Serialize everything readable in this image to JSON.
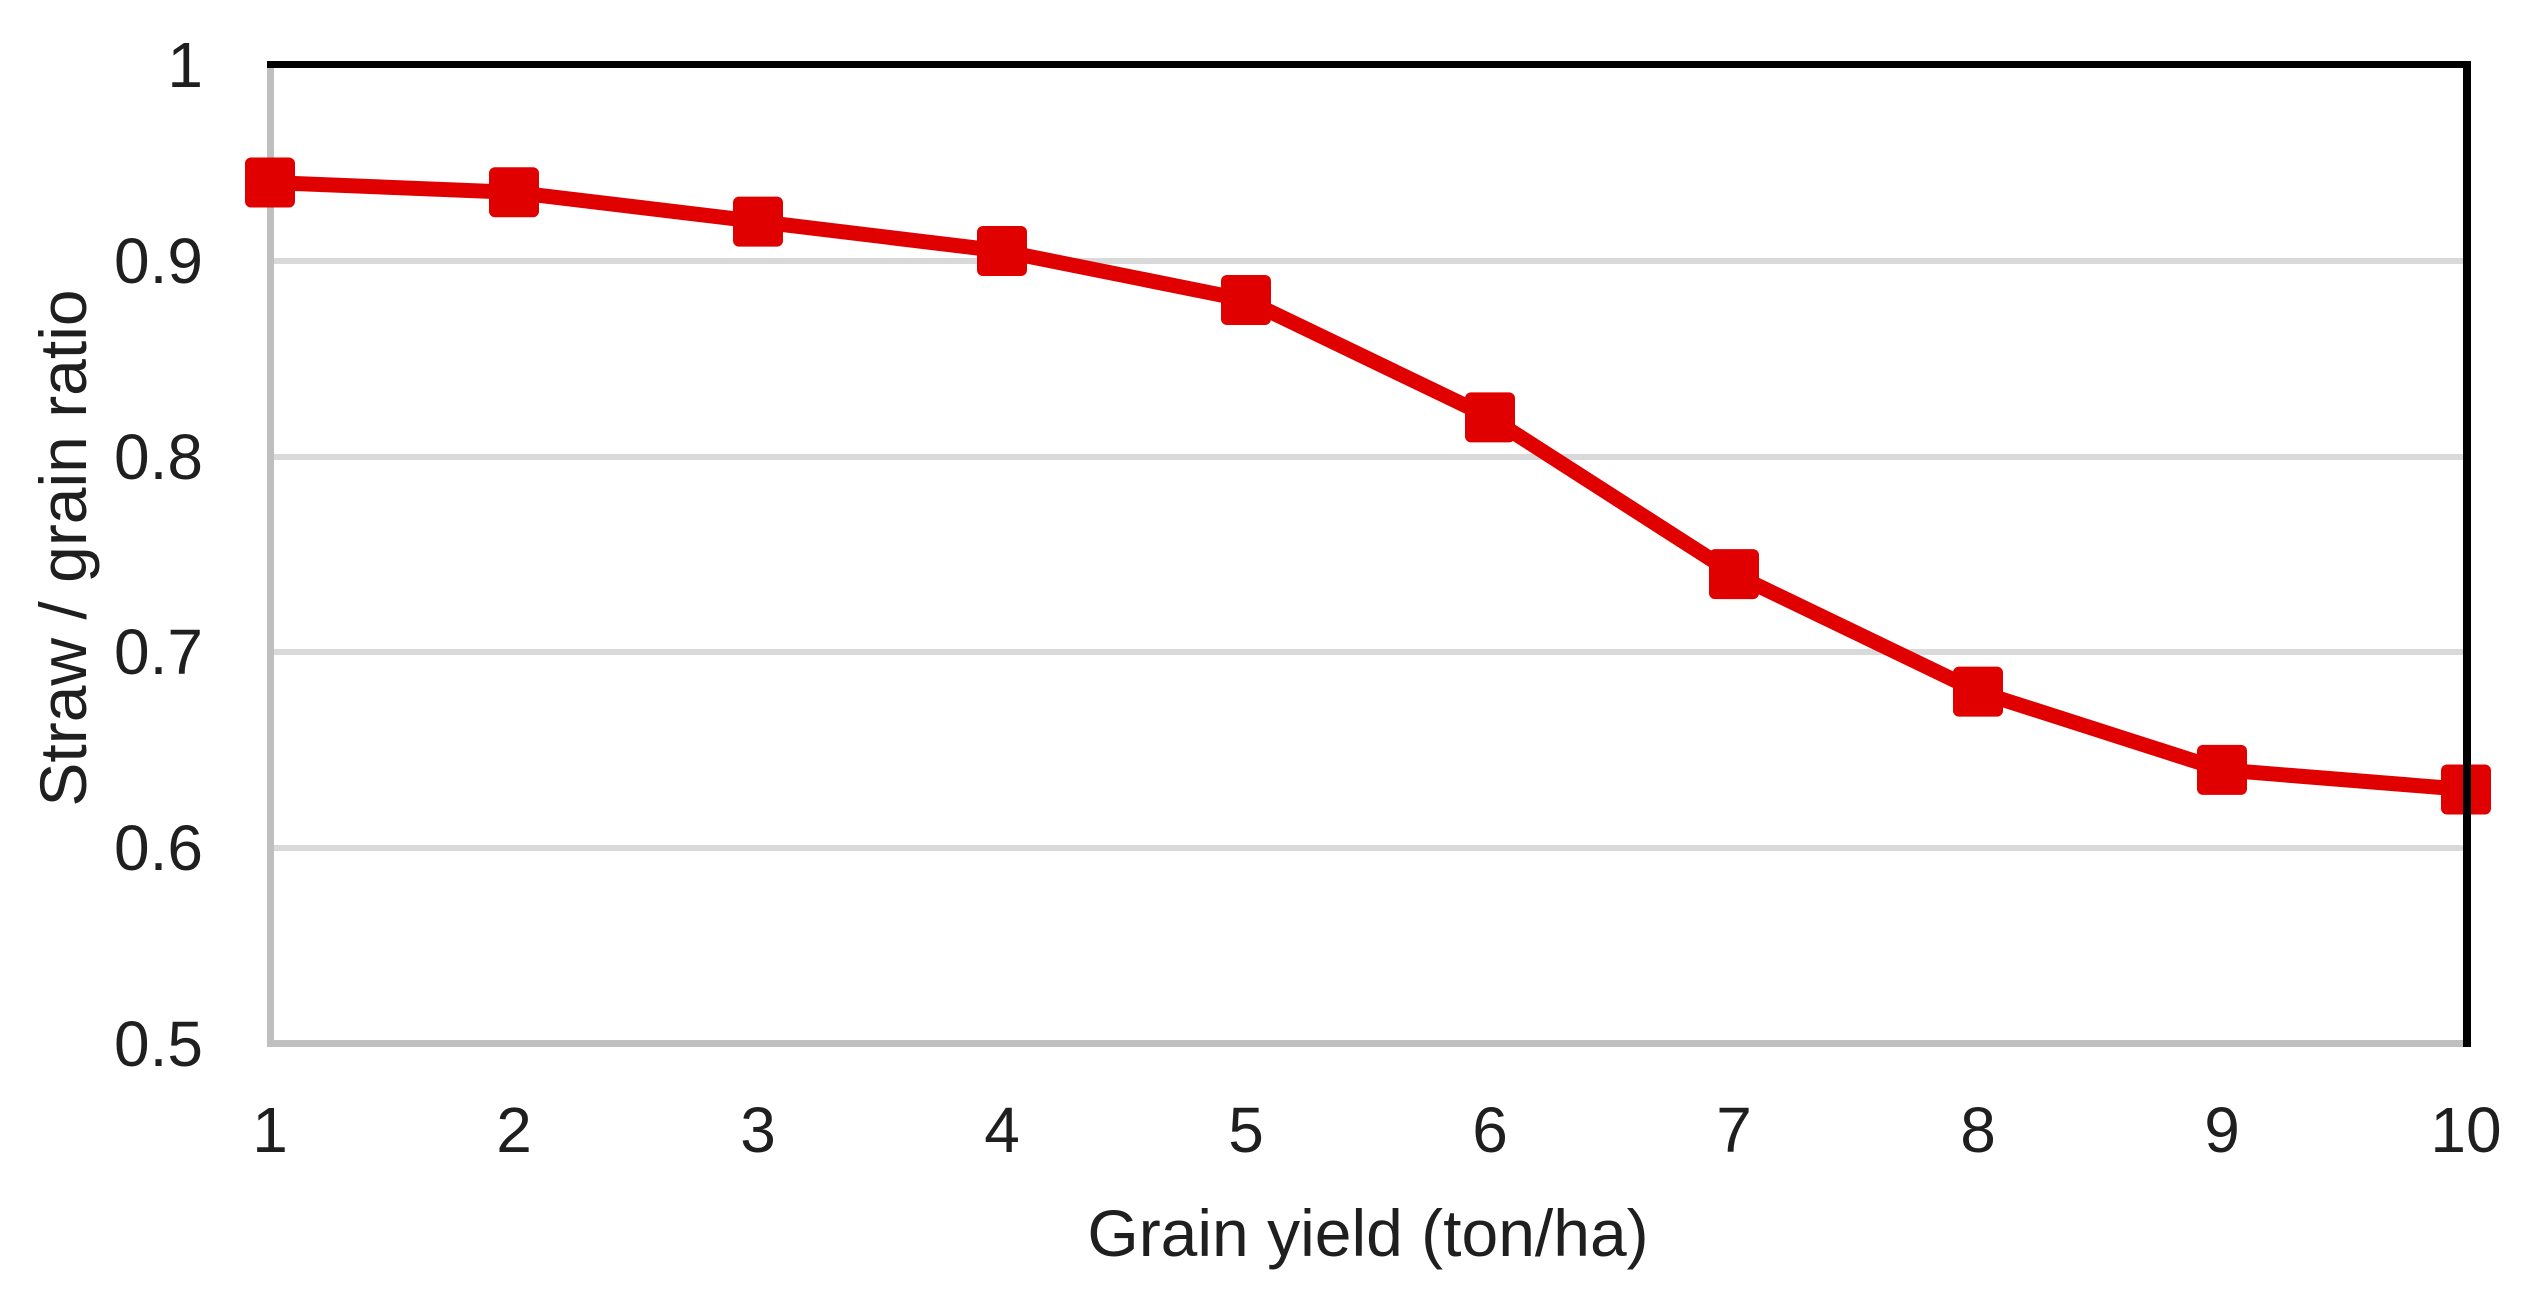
{
  "chart_data": {
    "type": "line",
    "title": "",
    "xlabel": "Grain yield (ton/ha)",
    "ylabel": "Straw / grain ratio",
    "x": [
      1,
      2,
      3,
      4,
      5,
      6,
      7,
      8,
      9,
      10
    ],
    "series": [
      {
        "name": "Straw / grain ratio",
        "values": [
          0.94,
          0.935,
          0.92,
          0.905,
          0.88,
          0.82,
          0.74,
          0.68,
          0.64,
          0.63
        ]
      }
    ],
    "xlim": [
      1,
      10
    ],
    "ylim": [
      0.5,
      1.0
    ],
    "xticks": [
      1,
      2,
      3,
      4,
      5,
      6,
      7,
      8,
      9,
      10
    ],
    "xtick_labels": [
      "1",
      "2",
      "3",
      "4",
      "5",
      "6",
      "7",
      "8",
      "9",
      "10"
    ],
    "yticks": [
      1,
      0.9,
      0.8,
      0.7,
      0.6,
      0.5
    ],
    "ytick_labels": [
      "1",
      "0.9",
      "0.8",
      "0.7",
      "0.6",
      "0.5"
    ],
    "grid": "horizontal",
    "legend": "none",
    "marker": "square",
    "colors": {
      "series": "#e00000",
      "gridline": "#d9d9d9",
      "axis_line": "#bfbfbf",
      "plot_border": "#000000",
      "text": "#1f1f1f"
    }
  }
}
